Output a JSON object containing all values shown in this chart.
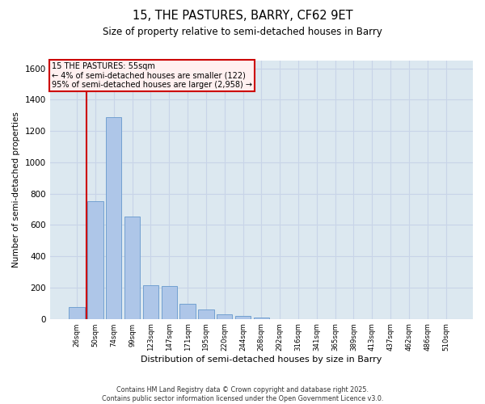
{
  "title": "15, THE PASTURES, BARRY, CF62 9ET",
  "subtitle": "Size of property relative to semi-detached houses in Barry",
  "xlabel": "Distribution of semi-detached houses by size in Barry",
  "ylabel": "Number of semi-detached properties",
  "categories": [
    "26sqm",
    "50sqm",
    "74sqm",
    "99sqm",
    "123sqm",
    "147sqm",
    "171sqm",
    "195sqm",
    "220sqm",
    "244sqm",
    "268sqm",
    "292sqm",
    "316sqm",
    "341sqm",
    "365sqm",
    "389sqm",
    "413sqm",
    "437sqm",
    "462sqm",
    "486sqm",
    "510sqm"
  ],
  "values": [
    75,
    750,
    1290,
    655,
    215,
    210,
    95,
    60,
    30,
    18,
    8,
    0,
    0,
    0,
    0,
    0,
    0,
    0,
    0,
    0,
    0
  ],
  "bar_color": "#aec6e8",
  "bar_edge_color": "#6699cc",
  "annotation_text_line1": "15 THE PASTURES: 55sqm",
  "annotation_text_line2": "← 4% of semi-detached houses are smaller (122)",
  "annotation_text_line3": "95% of semi-detached houses are larger (2,958) →",
  "annotation_box_facecolor": "#fff0f0",
  "annotation_box_edge": "#cc0000",
  "vline_color": "#cc0000",
  "vline_x": 0.5,
  "ylim": [
    0,
    1650
  ],
  "yticks": [
    0,
    200,
    400,
    600,
    800,
    1000,
    1200,
    1400,
    1600
  ],
  "grid_color": "#c8d4e8",
  "background_color": "#dce8f0",
  "footer_line1": "Contains HM Land Registry data © Crown copyright and database right 2025.",
  "footer_line2": "Contains public sector information licensed under the Open Government Licence v3.0."
}
